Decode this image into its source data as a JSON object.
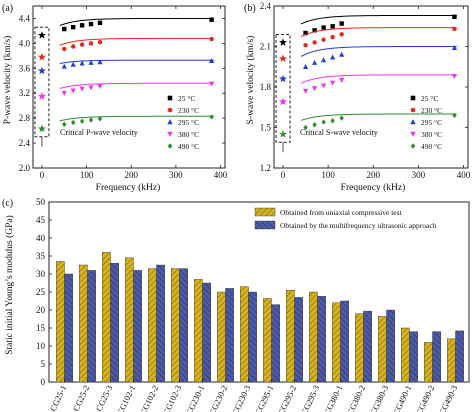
{
  "colors": {
    "t25": "#000000",
    "t230": "#e8261c",
    "t295": "#1f3fd6",
    "t380": "#ee36ee",
    "t490": "#2e8b2e",
    "bar_ucs": "#d6b21e",
    "bar_ultra": "#4e5aa6"
  },
  "chart_data": [
    {
      "panel": "(a)",
      "type": "scatter",
      "xlabel": "Frequency (kHz)",
      "ylabel": "P-wave velocity (km/s)",
      "xlim": [
        -20,
        410
      ],
      "ylim": [
        2.0,
        4.6
      ],
      "xticks": [
        "0",
        "100",
        "200",
        "300",
        "400"
      ],
      "yticks": [
        "2.0",
        "2.4",
        "2.8",
        "3.2",
        "3.6",
        "4.0",
        "4.4"
      ],
      "annotation": "Critical P-wave velocity",
      "legend_position": "bottom-right",
      "series": [
        {
          "name": "25 °C",
          "marker": "square",
          "color_key": "t25",
          "critical": 4.13,
          "x": [
            50,
            70,
            90,
            110,
            130,
            380
          ],
          "y": [
            4.23,
            4.26,
            4.29,
            4.31,
            4.33,
            4.38
          ],
          "fit_plateau": 4.4,
          "fit_amp": 0.31,
          "fit_k": 40
        },
        {
          "name": "230 °C",
          "marker": "circle",
          "color_key": "t230",
          "critical": 3.78,
          "x": [
            50,
            70,
            90,
            110,
            130,
            380
          ],
          "y": [
            3.91,
            3.95,
            3.98,
            4.0,
            4.02,
            4.07
          ],
          "fit_plateau": 4.08,
          "fit_amp": 0.3,
          "fit_k": 40
        },
        {
          "name": "295 °C",
          "marker": "triangle",
          "color_key": "t295",
          "critical": 3.56,
          "x": [
            50,
            70,
            90,
            110,
            130,
            380
          ],
          "y": [
            3.63,
            3.66,
            3.68,
            3.69,
            3.7,
            3.72
          ],
          "fit_plateau": 3.73,
          "fit_amp": 0.17,
          "fit_k": 35
        },
        {
          "name": "380 °C",
          "marker": "triangle-down",
          "color_key": "t380",
          "critical": 3.15,
          "x": [
            50,
            70,
            90,
            110,
            130,
            380
          ],
          "y": [
            3.2,
            3.24,
            3.27,
            3.29,
            3.31,
            3.35
          ],
          "fit_plateau": 3.36,
          "fit_amp": 0.23,
          "fit_k": 40
        },
        {
          "name": "490 °C",
          "marker": "diamond",
          "color_key": "t490",
          "critical": 2.63,
          "x": [
            50,
            70,
            90,
            110,
            130,
            380
          ],
          "y": [
            2.7,
            2.73,
            2.75,
            2.77,
            2.79,
            2.82
          ],
          "fit_plateau": 2.83,
          "fit_amp": 0.2,
          "fit_k": 40
        }
      ]
    },
    {
      "panel": "(b)",
      "type": "scatter",
      "xlabel": "Frequency (kHz)",
      "ylabel": "S-wave velocity (km/s)",
      "xlim": [
        -20,
        410
      ],
      "ylim": [
        1.2,
        2.4
      ],
      "xticks": [
        "0",
        "100",
        "200",
        "300",
        "400"
      ],
      "yticks": [
        "1.2",
        "1.5",
        "1.8",
        "2.1",
        "2.4"
      ],
      "annotation": "Critical S-wave velocity",
      "legend_position": "bottom-right",
      "series": [
        {
          "name": "25 °C",
          "marker": "square",
          "color_key": "t25",
          "critical": 2.13,
          "x": [
            50,
            70,
            90,
            110,
            130,
            380
          ],
          "y": [
            2.2,
            2.22,
            2.24,
            2.25,
            2.27,
            2.32
          ],
          "fit_plateau": 2.33,
          "fit_amp": 0.17,
          "fit_k": 40
        },
        {
          "name": "230 °C",
          "marker": "circle",
          "color_key": "t230",
          "critical": 2.01,
          "x": [
            50,
            70,
            90,
            110,
            130,
            380
          ],
          "y": [
            2.11,
            2.13,
            2.15,
            2.17,
            2.19,
            2.23
          ],
          "fit_plateau": 2.24,
          "fit_amp": 0.18,
          "fit_k": 40
        },
        {
          "name": "295 °C",
          "marker": "triangle",
          "color_key": "t295",
          "critical": 1.86,
          "x": [
            50,
            70,
            90,
            110,
            130,
            380
          ],
          "y": [
            1.95,
            1.98,
            2.0,
            2.02,
            2.04,
            2.09
          ],
          "fit_plateau": 2.1,
          "fit_amp": 0.2,
          "fit_k": 40
        },
        {
          "name": "380 °C",
          "marker": "triangle-down",
          "color_key": "t380",
          "critical": 1.69,
          "x": [
            50,
            70,
            90,
            110,
            130,
            380
          ],
          "y": [
            1.77,
            1.79,
            1.81,
            1.83,
            1.85,
            1.88
          ],
          "fit_plateau": 1.89,
          "fit_amp": 0.17,
          "fit_k": 40
        },
        {
          "name": "490 °C",
          "marker": "diamond",
          "color_key": "t490",
          "critical": 1.45,
          "x": [
            50,
            70,
            90,
            110,
            130,
            380
          ],
          "y": [
            1.5,
            1.52,
            1.54,
            1.55,
            1.57,
            1.59
          ],
          "fit_plateau": 1.6,
          "fit_amp": 0.13,
          "fit_k": 40
        }
      ]
    },
    {
      "panel": "(c)",
      "type": "bar",
      "ylabel": "Static initial Young’s modulus (GPa)",
      "ylim": [
        0,
        50
      ],
      "yticks": [
        "0",
        "5",
        "10",
        "15",
        "20",
        "25",
        "30",
        "35",
        "40",
        "45",
        "50"
      ],
      "legend_position": "top-right",
      "categories": [
        "CG25-1",
        "CG25-2",
        "CG25-3",
        "CG102-1",
        "CG102-2",
        "CG102-3",
        "CG230-1",
        "CG230-2",
        "CG230-3",
        "CG295-1",
        "CG295-2",
        "CG295-3",
        "CG380-1",
        "CG380-2",
        "CG380-3",
        "CG490-1",
        "CG490-2",
        "CG490-3"
      ],
      "series": [
        {
          "name": "Obtained from uniaxial compressive test",
          "color_key": "bar_ucs",
          "values": [
            33.5,
            32.5,
            36.0,
            34.5,
            31.5,
            31.5,
            28.5,
            25.0,
            26.5,
            23.2,
            25.5,
            25.0,
            22.0,
            19.0,
            18.2,
            15.0,
            11.0,
            12.0
          ]
        },
        {
          "name": "Obtained by the multifrequency ultrasonic approach",
          "color_key": "bar_ultra",
          "values": [
            30.0,
            31.0,
            33.0,
            31.0,
            32.5,
            31.5,
            27.5,
            26.0,
            25.0,
            21.5,
            23.5,
            23.8,
            22.5,
            19.7,
            20.0,
            14.0,
            14.0,
            14.2
          ]
        }
      ]
    }
  ]
}
